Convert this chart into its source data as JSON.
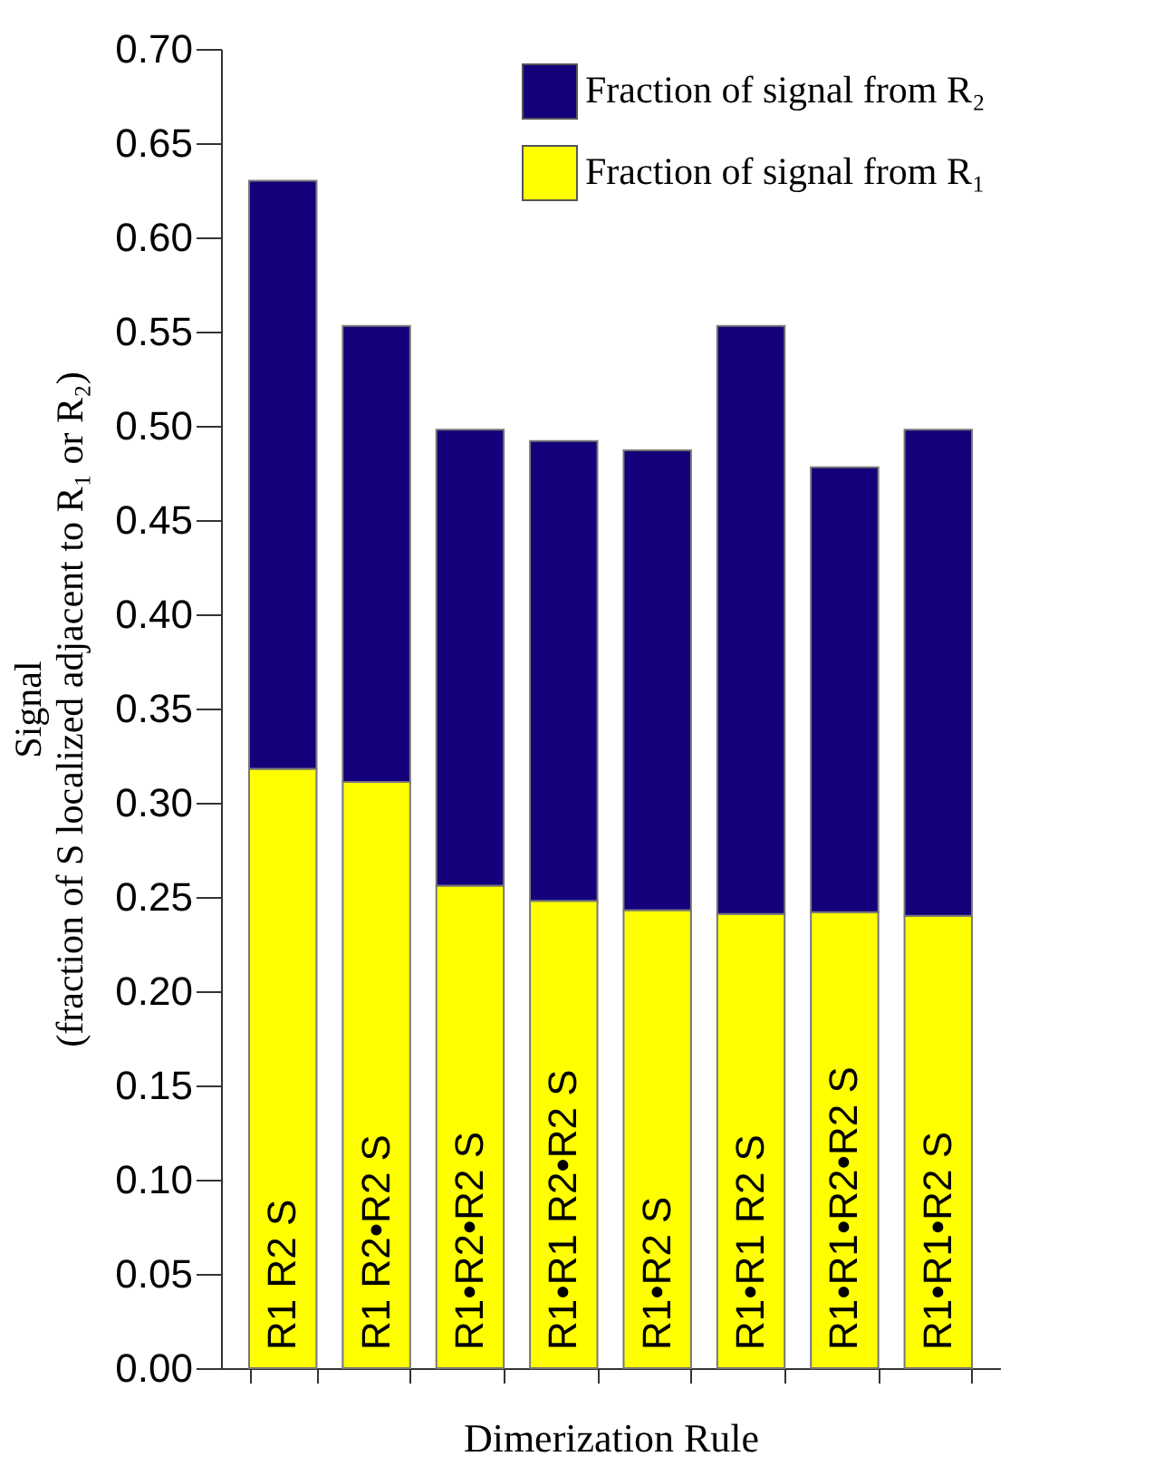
{
  "chart_data": {
    "type": "bar",
    "stacked": true,
    "xlabel": "Dimerization Rule",
    "ylabel": "Signal\n(fraction of  S localized adjacent to R₁ or R₂)",
    "categories": [
      "R1  R2  S",
      "R1  R2•R2  S",
      "R1•R2•R2  S",
      "R1•R1  R2•R2  S",
      "R1•R2  S",
      "R1•R1  R2  S",
      "R1•R1•R2•R2  S",
      "R1•R1•R2  S"
    ],
    "series": [
      {
        "name": "Fraction of signal from R₁",
        "color": "#ffff00",
        "values": [
          0.318,
          0.311,
          0.256,
          0.248,
          0.243,
          0.241,
          0.242,
          0.24
        ]
      },
      {
        "name": "Fraction of signal from R₂",
        "color": "#13007a",
        "values": [
          0.312,
          0.242,
          0.242,
          0.244,
          0.244,
          0.312,
          0.236,
          0.258
        ]
      }
    ],
    "ylim": [
      0,
      0.7
    ],
    "yticks": [
      {
        "value": 0,
        "label": "0.00"
      },
      0.05,
      {
        "value": 0.1,
        "label": "0.10"
      },
      0.15,
      {
        "value": 0.2,
        "label": "0.20"
      },
      0.25,
      {
        "value": 0.3,
        "label": "0.30"
      },
      0.35,
      {
        "value": 0.4,
        "label": "0.40"
      },
      0.45,
      {
        "value": 0.5,
        "label": "0.50"
      },
      0.55,
      {
        "value": 0.6,
        "label": "0.60"
      },
      0.65,
      {
        "value": 0.7,
        "label": "0.70"
      }
    ],
    "legend": "top right",
    "grid": false
  }
}
